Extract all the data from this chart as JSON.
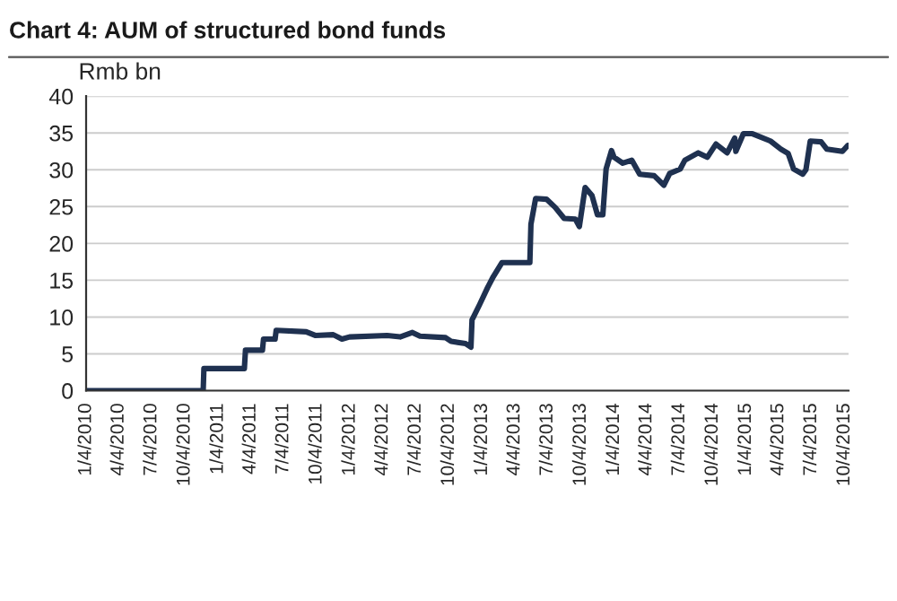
{
  "chart_data": {
    "type": "line",
    "title": "Chart 4: AUM of structured bond funds",
    "ylabel": "Rmb bn",
    "x": [
      "2010-01-04",
      "2010-11-24",
      "2010-11-26",
      "2011-03-18",
      "2011-03-21",
      "2011-05-07",
      "2011-05-10",
      "2011-06-11",
      "2011-06-14",
      "2011-09-05",
      "2011-09-30",
      "2011-11-19",
      "2011-12-13",
      "2012-01-03",
      "2012-04-16",
      "2012-05-22",
      "2012-06-25",
      "2012-07-16",
      "2012-09-25",
      "2012-10-10",
      "2012-11-19",
      "2012-12-04",
      "2012-12-07",
      "2012-12-28",
      "2013-01-19",
      "2013-02-04",
      "2013-02-28",
      "2013-05-16",
      "2013-05-19",
      "2013-06-01",
      "2013-07-01",
      "2013-07-25",
      "2013-08-19",
      "2013-09-19",
      "2013-09-30",
      "2013-10-16",
      "2013-11-04",
      "2013-11-19",
      "2013-12-04",
      "2013-12-13",
      "2013-12-28",
      "2014-01-04",
      "2014-01-28",
      "2014-02-22",
      "2014-03-16",
      "2014-04-25",
      "2014-05-22",
      "2014-06-07",
      "2014-07-06",
      "2014-07-19",
      "2014-08-25",
      "2014-09-19",
      "2014-10-13",
      "2014-11-13",
      "2014-12-04",
      "2014-12-07",
      "2014-12-28",
      "2015-01-22",
      "2015-03-13",
      "2015-04-11",
      "2015-05-01",
      "2015-05-16",
      "2015-06-10",
      "2015-06-19",
      "2015-07-01",
      "2015-07-31",
      "2015-08-16",
      "2015-09-28",
      "2015-10-13"
    ],
    "series": [
      {
        "color": "#1f3150",
        "values": [
          0,
          0,
          3.0,
          3.0,
          5.5,
          5.5,
          7.0,
          7.0,
          8.2,
          8.0,
          7.5,
          7.6,
          7.0,
          7.3,
          7.5,
          7.3,
          7.9,
          7.4,
          7.2,
          6.7,
          6.4,
          5.9,
          9.6,
          11.7,
          14.0,
          15.5,
          17.4,
          17.4,
          22.6,
          26.1,
          26.0,
          24.9,
          23.4,
          23.3,
          22.3,
          27.6,
          26.5,
          23.9,
          23.9,
          30.1,
          32.6,
          31.7,
          30.9,
          31.3,
          29.4,
          29.2,
          27.9,
          29.5,
          30.1,
          31.3,
          32.3,
          31.7,
          33.5,
          32.3,
          34.3,
          32.5,
          34.9,
          34.9,
          33.9,
          32.8,
          32.2,
          30.1,
          29.4,
          30.0,
          33.9,
          33.8,
          32.8,
          32.5,
          33.3
        ]
      }
    ],
    "xlim": [
      "2010-01-04",
      "2015-10-15"
    ],
    "xticks": [
      {
        "value": "2010-01-04",
        "label": "1/4/2010"
      },
      {
        "value": "2010-04-04",
        "label": "4/4/2010"
      },
      {
        "value": "2010-07-04",
        "label": "7/4/2010"
      },
      {
        "value": "2010-10-04",
        "label": "10/4/2010"
      },
      {
        "value": "2011-01-04",
        "label": "1/4/2011"
      },
      {
        "value": "2011-04-04",
        "label": "4/4/2011"
      },
      {
        "value": "2011-07-04",
        "label": "7/4/2011"
      },
      {
        "value": "2011-10-04",
        "label": "10/4/2011"
      },
      {
        "value": "2012-01-04",
        "label": "1/4/2012"
      },
      {
        "value": "2012-04-04",
        "label": "4/4/2012"
      },
      {
        "value": "2012-07-04",
        "label": "7/4/2012"
      },
      {
        "value": "2012-10-04",
        "label": "10/4/2012"
      },
      {
        "value": "2013-01-04",
        "label": "1/4/2013"
      },
      {
        "value": "2013-04-04",
        "label": "4/4/2013"
      },
      {
        "value": "2013-07-04",
        "label": "7/4/2013"
      },
      {
        "value": "2013-10-04",
        "label": "10/4/2013"
      },
      {
        "value": "2014-01-04",
        "label": "1/4/2014"
      },
      {
        "value": "2014-04-04",
        "label": "4/4/2014"
      },
      {
        "value": "2014-07-04",
        "label": "7/4/2014"
      },
      {
        "value": "2014-10-04",
        "label": "10/4/2014"
      },
      {
        "value": "2015-01-04",
        "label": "1/4/2015"
      },
      {
        "value": "2015-04-04",
        "label": "4/4/2015"
      },
      {
        "value": "2015-07-04",
        "label": "7/4/2015"
      },
      {
        "value": "2015-10-04",
        "label": "10/4/2015"
      }
    ],
    "ylim": [
      0,
      40
    ],
    "yticks": [
      0,
      5,
      10,
      15,
      20,
      25,
      30,
      35,
      40
    ],
    "grid": "y",
    "legend": false,
    "marker": "none",
    "line_style": "solid"
  }
}
